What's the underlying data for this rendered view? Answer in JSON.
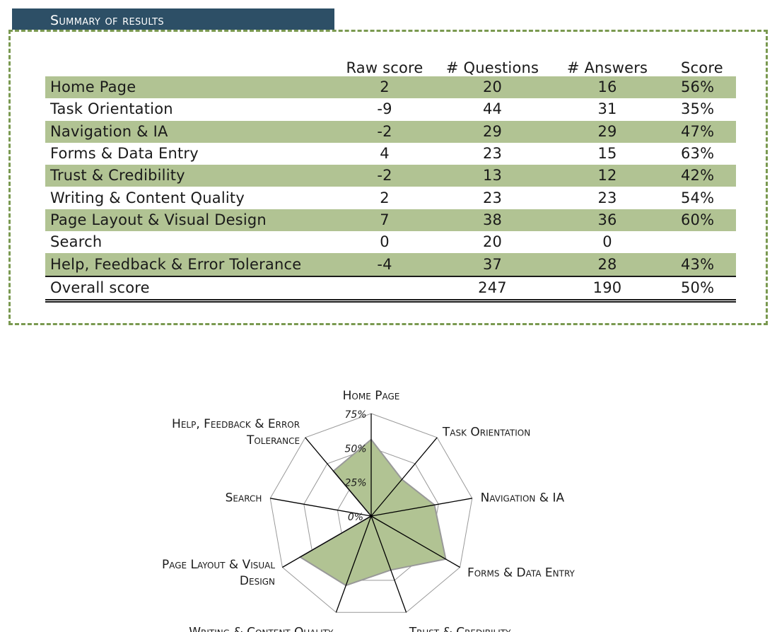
{
  "section_title": "Summary of results",
  "table": {
    "columns": [
      "",
      "Raw score",
      "# Questions",
      "# Answers",
      "Score"
    ],
    "rows": [
      {
        "name": "Home Page",
        "raw": "2",
        "questions": "20",
        "answers": "16",
        "score": "56%"
      },
      {
        "name": "Task Orientation",
        "raw": "-9",
        "questions": "44",
        "answers": "31",
        "score": "35%"
      },
      {
        "name": "Navigation & IA",
        "raw": "-2",
        "questions": "29",
        "answers": "29",
        "score": "47%"
      },
      {
        "name": "Forms & Data Entry",
        "raw": "4",
        "questions": "23",
        "answers": "15",
        "score": "63%"
      },
      {
        "name": "Trust & Credibility",
        "raw": "-2",
        "questions": "13",
        "answers": "12",
        "score": "42%"
      },
      {
        "name": "Writing & Content Quality",
        "raw": "2",
        "questions": "23",
        "answers": "23",
        "score": "54%"
      },
      {
        "name": "Page Layout & Visual Design",
        "raw": "7",
        "questions": "38",
        "answers": "36",
        "score": "60%"
      },
      {
        "name": "Search",
        "raw": "0",
        "questions": "20",
        "answers": "0",
        "score": ""
      },
      {
        "name": "Help, Feedback & Error Tolerance",
        "raw": "-4",
        "questions": "37",
        "answers": "28",
        "score": "43%"
      }
    ],
    "total": {
      "name": "Overall score",
      "raw": "",
      "questions": "247",
      "answers": "190",
      "score": "50%"
    }
  },
  "chart_data": {
    "type": "radar",
    "categories": [
      "Home Page",
      "Task Orientation",
      "Navigation & IA",
      "Forms & Data Entry",
      "Trust & Credibility",
      "Writing & Content Quality",
      "Page Layout & Visual Design",
      "Search",
      "Help, Feedback & Error Tolerance"
    ],
    "category_label_lines": [
      [
        "Home Page"
      ],
      [
        "Task Orientation"
      ],
      [
        "Navigation & IA"
      ],
      [
        "Forms & Data Entry"
      ],
      [
        "Trust & Credibility"
      ],
      [
        "Writing & Content Quality"
      ],
      [
        "Page Layout & Visual",
        "Design"
      ],
      [
        "Search"
      ],
      [
        "Help, Feedback & Error",
        "Tolerance"
      ]
    ],
    "values": [
      56,
      35,
      47,
      63,
      42,
      54,
      60,
      0,
      43
    ],
    "value_unit": "%",
    "rlim": [
      0,
      75
    ],
    "ticks": [
      0,
      25,
      50,
      75
    ],
    "tick_labels": [
      "0%",
      "25%",
      "50%",
      "75%"
    ],
    "grid": true,
    "legend": "none",
    "colors": {
      "fill": "#b1c393",
      "stroke": "#999999",
      "grid": "#999999",
      "axis": "#000000"
    }
  },
  "colors": {
    "header_bg": "#2d4f66",
    "header_text": "#ffffff",
    "frame_border": "#7a9950",
    "row_stripe": "#b1c393"
  }
}
